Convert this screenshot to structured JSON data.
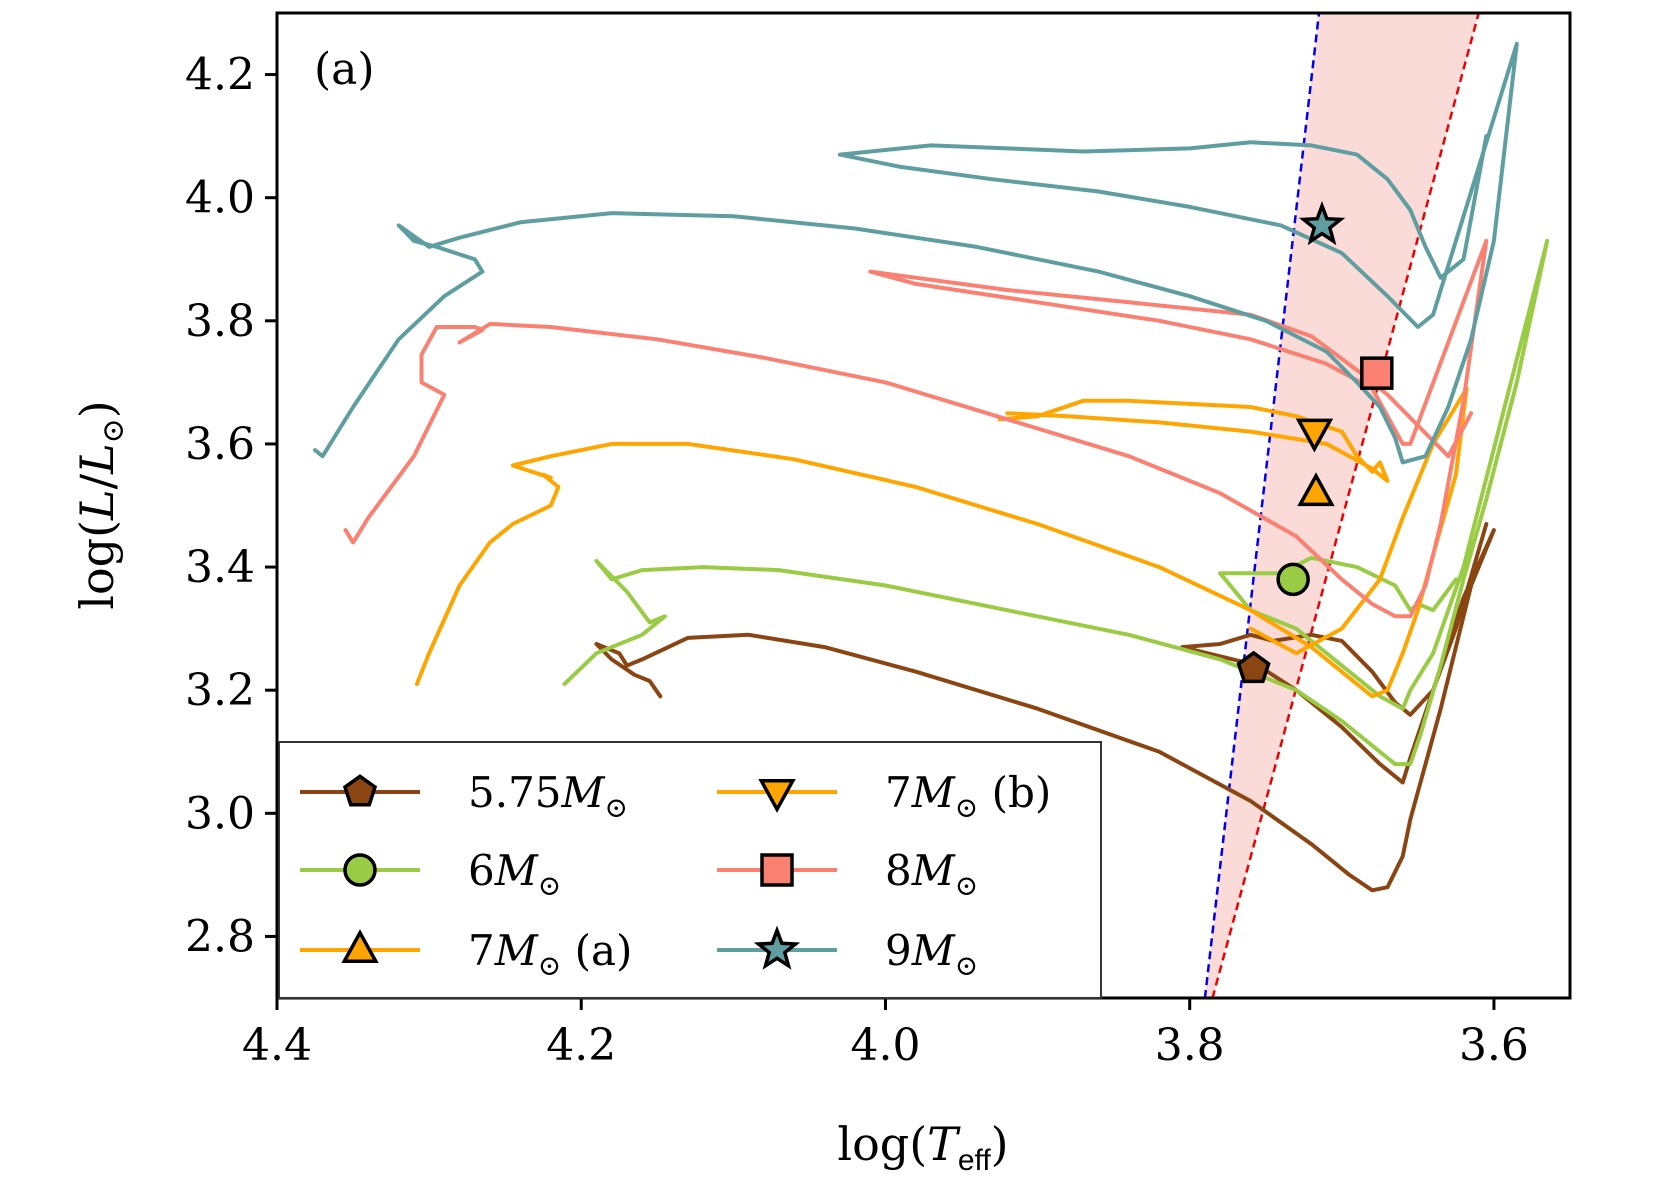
{
  "chart_data": {
    "type": "line",
    "panel_label": "(a)",
    "xlabel": "log(T_eff)",
    "ylabel": "log(L/L⊙)",
    "xlim": [
      4.4,
      3.55
    ],
    "ylim": [
      2.7,
      4.3
    ],
    "x_ticks": [
      4.4,
      4.2,
      4.0,
      3.8,
      3.6
    ],
    "x_tick_labels": [
      "4.4",
      "4.2",
      "4.0",
      "3.8",
      "3.6"
    ],
    "y_ticks": [
      2.8,
      3.0,
      3.2,
      3.4,
      3.6,
      3.8,
      4.0,
      4.2
    ],
    "y_tick_labels": [
      "2.8",
      "3.0",
      "3.2",
      "3.4",
      "3.6",
      "3.8",
      "4.0",
      "4.2"
    ],
    "instability_strip": {
      "blue_edge": [
        [
          3.79,
          2.7
        ],
        [
          3.715,
          4.3
        ]
      ],
      "red_edge": [
        [
          3.785,
          2.7
        ],
        [
          3.61,
          4.3
        ]
      ],
      "fill": "#fadbd8",
      "blue_color": "#0000ee",
      "red_color": "#ee0000"
    },
    "legend_location": "lower-left",
    "series": [
      {
        "name": "5.75M⊙",
        "label_main": "5.75M",
        "label_suffix": "",
        "marker": "pentagon",
        "color": "#8b4513",
        "marker_point": [
          3.758,
          3.235
        ],
        "x": [
          4.148,
          4.155,
          4.165,
          4.18,
          4.19,
          4.175,
          4.17,
          4.16,
          4.13,
          4.09,
          4.04,
          3.98,
          3.9,
          3.82,
          3.76,
          3.72,
          3.695,
          3.68,
          3.67,
          3.66,
          3.655,
          3.645,
          3.635,
          3.625,
          3.615,
          3.6,
          3.62,
          3.64,
          3.655,
          3.66,
          3.675,
          3.7,
          3.73,
          3.755,
          3.78,
          3.805,
          3.78,
          3.76,
          3.745,
          3.72,
          3.7,
          3.68,
          3.665,
          3.655,
          3.64,
          3.625,
          3.605
        ],
        "y": [
          3.19,
          3.215,
          3.225,
          3.25,
          3.275,
          3.26,
          3.24,
          3.25,
          3.285,
          3.29,
          3.27,
          3.23,
          3.17,
          3.1,
          3.02,
          2.95,
          2.9,
          2.875,
          2.88,
          2.93,
          2.99,
          3.08,
          3.17,
          3.27,
          3.37,
          3.46,
          3.35,
          3.2,
          3.09,
          3.05,
          3.08,
          3.14,
          3.2,
          3.24,
          3.255,
          3.27,
          3.275,
          3.29,
          3.28,
          3.29,
          3.28,
          3.23,
          3.18,
          3.16,
          3.2,
          3.3,
          3.47
        ]
      },
      {
        "name": "6M⊙",
        "label_main": "6M",
        "label_suffix": "",
        "marker": "circle",
        "color": "#99cc44",
        "marker_point": [
          3.732,
          3.38
        ],
        "x": [
          4.211,
          4.19,
          4.16,
          4.145,
          4.155,
          4.17,
          4.19,
          4.18,
          4.16,
          4.12,
          4.07,
          4.0,
          3.92,
          3.84,
          3.78,
          3.73,
          3.7,
          3.68,
          3.665,
          3.655,
          3.648,
          3.635,
          3.62,
          3.605,
          3.585,
          3.565,
          3.62,
          3.64,
          3.655,
          3.66,
          3.675,
          3.7,
          3.73,
          3.76,
          3.78,
          3.74,
          3.72,
          3.69,
          3.665,
          3.655,
          3.65,
          3.64,
          3.625
        ],
        "y": [
          3.21,
          3.26,
          3.29,
          3.32,
          3.31,
          3.36,
          3.41,
          3.38,
          3.395,
          3.4,
          3.395,
          3.37,
          3.33,
          3.29,
          3.25,
          3.2,
          3.15,
          3.11,
          3.08,
          3.08,
          3.13,
          3.24,
          3.38,
          3.51,
          3.7,
          3.93,
          3.4,
          3.26,
          3.2,
          3.17,
          3.19,
          3.24,
          3.3,
          3.33,
          3.39,
          3.39,
          3.415,
          3.4,
          3.37,
          3.33,
          3.34,
          3.33,
          3.38
        ]
      },
      {
        "name": "7M⊙ (a)",
        "label_main": "7M",
        "label_suffix": " (a)",
        "marker": "triangle-up",
        "color": "#ffa500",
        "marker_point": [
          3.717,
          3.52
        ],
        "x": [
          4.308,
          4.3,
          4.28,
          4.26,
          4.245,
          4.22,
          4.215,
          4.225,
          4.22,
          4.245,
          4.245,
          4.22,
          4.18,
          4.13,
          4.06,
          3.98,
          3.9,
          3.82,
          3.76,
          3.72,
          3.695,
          3.68,
          3.67,
          3.66,
          3.65,
          3.64,
          3.625,
          3.618,
          3.64,
          3.66,
          3.675,
          3.7,
          3.73,
          3.76
        ],
        "y": [
          3.21,
          3.26,
          3.37,
          3.44,
          3.47,
          3.5,
          3.53,
          3.55,
          3.545,
          3.565,
          3.565,
          3.58,
          3.6,
          3.6,
          3.575,
          3.53,
          3.47,
          3.4,
          3.33,
          3.27,
          3.22,
          3.19,
          3.2,
          3.26,
          3.33,
          3.42,
          3.55,
          3.69,
          3.6,
          3.48,
          3.38,
          3.3,
          3.26,
          3.3
        ]
      },
      {
        "name": "7M⊙ (b)",
        "label_main": "7M",
        "label_suffix": " (b)",
        "marker": "triangle-down",
        "color": "#ffa500",
        "marker_point": [
          3.718,
          3.62
        ],
        "x": [
          3.925,
          3.9,
          3.87,
          3.84,
          3.8,
          3.76,
          3.73,
          3.7,
          3.69,
          3.68,
          3.675,
          3.67,
          3.68,
          3.71,
          3.76,
          3.82,
          3.88,
          3.92
        ],
        "y": [
          3.64,
          3.645,
          3.67,
          3.67,
          3.665,
          3.66,
          3.645,
          3.62,
          3.58,
          3.555,
          3.57,
          3.54,
          3.56,
          3.6,
          3.62,
          3.635,
          3.645,
          3.65
        ],
        "marker_point_label": ""
      },
      {
        "name": "8M⊙",
        "label_main": "8M",
        "label_suffix": "",
        "marker": "square",
        "color": "#fa8072",
        "marker_point": [
          3.677,
          3.715
        ],
        "x": [
          4.355,
          4.35,
          4.34,
          4.31,
          4.29,
          4.305,
          4.305,
          4.295,
          4.27,
          4.265,
          4.28,
          4.26,
          4.22,
          4.15,
          4.08,
          4.0,
          3.92,
          3.84,
          3.78,
          3.73,
          3.7,
          3.68,
          3.665,
          3.655,
          3.645,
          3.635,
          3.62,
          3.605,
          3.655,
          3.66,
          3.68,
          3.71,
          3.76,
          3.82,
          3.9,
          3.98,
          4.01,
          3.92,
          3.84,
          3.76,
          3.72,
          3.69,
          3.67,
          3.65,
          3.63,
          3.615
        ],
        "y": [
          3.46,
          3.44,
          3.48,
          3.58,
          3.68,
          3.7,
          3.745,
          3.79,
          3.79,
          3.785,
          3.765,
          3.795,
          3.79,
          3.77,
          3.74,
          3.7,
          3.64,
          3.58,
          3.52,
          3.45,
          3.38,
          3.34,
          3.32,
          3.32,
          3.37,
          3.47,
          3.67,
          3.93,
          3.6,
          3.6,
          3.69,
          3.73,
          3.77,
          3.8,
          3.83,
          3.86,
          3.88,
          3.85,
          3.83,
          3.81,
          3.775,
          3.72,
          3.68,
          3.63,
          3.58,
          3.65
        ]
      },
      {
        "name": "9M⊙",
        "label_main": "9M",
        "label_suffix": "",
        "marker": "star",
        "color": "#5f9ea0",
        "marker_point": [
          3.713,
          3.955
        ],
        "x": [
          4.375,
          4.37,
          4.35,
          4.32,
          4.29,
          4.265,
          4.27,
          4.295,
          4.31,
          4.32,
          4.3,
          4.28,
          4.24,
          4.18,
          4.1,
          4.02,
          3.94,
          3.86,
          3.8,
          3.75,
          3.71,
          3.69,
          3.675,
          3.665,
          3.66,
          3.645,
          3.63,
          3.615,
          3.6,
          3.585,
          3.64,
          3.65,
          3.67,
          3.7,
          3.74,
          3.8,
          3.86,
          3.93,
          3.99,
          4.03,
          3.97,
          3.92,
          3.87,
          3.8,
          3.76,
          3.72,
          3.69,
          3.67,
          3.655,
          3.645,
          3.635,
          3.62,
          3.605
        ],
        "y": [
          3.59,
          3.58,
          3.66,
          3.77,
          3.84,
          3.88,
          3.9,
          3.92,
          3.93,
          3.955,
          3.92,
          3.935,
          3.96,
          3.975,
          3.97,
          3.95,
          3.92,
          3.88,
          3.84,
          3.8,
          3.75,
          3.7,
          3.66,
          3.61,
          3.57,
          3.58,
          3.66,
          3.77,
          3.93,
          4.25,
          3.81,
          3.79,
          3.84,
          3.91,
          3.955,
          3.985,
          4.01,
          4.03,
          4.05,
          4.07,
          4.085,
          4.08,
          4.075,
          4.08,
          4.09,
          4.085,
          4.07,
          4.03,
          3.98,
          3.92,
          3.87,
          3.9,
          4.1
        ]
      }
    ]
  }
}
